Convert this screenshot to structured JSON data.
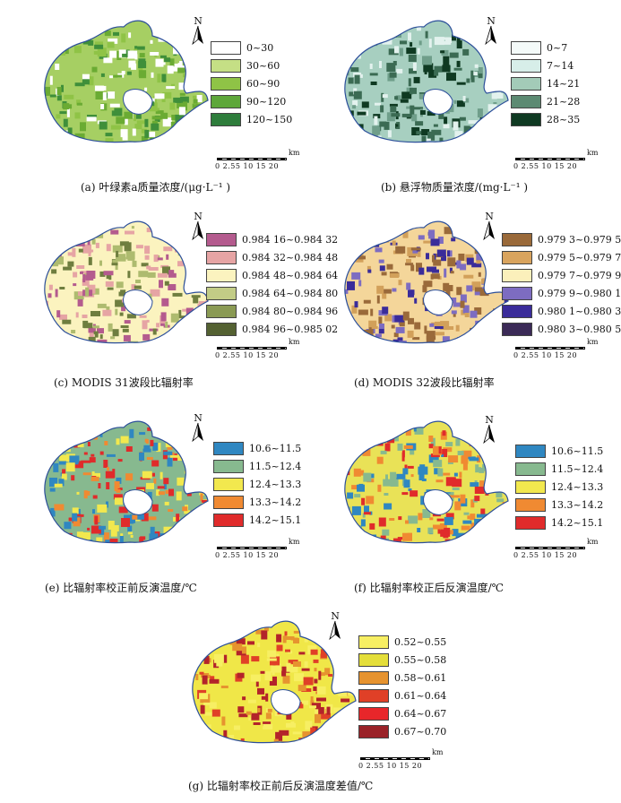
{
  "north_label": "N",
  "scale_unit": "km",
  "scale_ticks": "0 2.55  10  15  20",
  "panels": [
    {
      "caption": "(a) 叶绿素a质量浓度/(μg·L⁻¹ )",
      "fill": "#a6cf63",
      "patches": [
        "#8fc346",
        "#6aab33",
        "#3f8f3a",
        "#ffffff"
      ],
      "legend": [
        {
          "label": "0~30",
          "color": "#ffffff"
        },
        {
          "label": "30~60",
          "color": "#c5df85"
        },
        {
          "label": "60~90",
          "color": "#8fc346"
        },
        {
          "label": "90~120",
          "color": "#5ea73a"
        },
        {
          "label": "120~150",
          "color": "#2e7d3c"
        }
      ]
    },
    {
      "caption": "(b) 悬浮物质量浓度/(mg·L⁻¹ )",
      "fill": "#a7cfc0",
      "patches": [
        "#e3f2ee",
        "#6f9e8a",
        "#3b6b53",
        "#0f3a22"
      ],
      "legend": [
        {
          "label": "0~7",
          "color": "#f4faf9"
        },
        {
          "label": "7~14",
          "color": "#d7eee9"
        },
        {
          "label": "14~21",
          "color": "#a3cbb8"
        },
        {
          "label": "21~28",
          "color": "#5c8a72"
        },
        {
          "label": "28~35",
          "color": "#0f3a22"
        }
      ]
    },
    {
      "caption": "(c) MODIS 31波段比辐射率",
      "fill": "#fbf3bf",
      "patches": [
        "#e6a4a4",
        "#b45b8e",
        "#6f7e3f",
        "#aebb6f"
      ],
      "legend": [
        {
          "label": "0.984 16~0.984 32",
          "color": "#b45b8e"
        },
        {
          "label": "0.984 32~0.984 48",
          "color": "#e6a4a4"
        },
        {
          "label": "0.984 48~0.984 64",
          "color": "#fbf3bf"
        },
        {
          "label": "0.984 64~0.984 80",
          "color": "#c2cc86"
        },
        {
          "label": "0.984 80~0.984 96",
          "color": "#8a9a54"
        },
        {
          "label": "0.984 96~0.985 02",
          "color": "#546132"
        }
      ]
    },
    {
      "caption": "(d) MODIS 32波段比辐射率",
      "fill": "#f4d69a",
      "patches": [
        "#d2a05a",
        "#7d6cc1",
        "#3a2c9a",
        "#9a6a3a"
      ],
      "legend": [
        {
          "label": "0.979 3~0.979 5",
          "color": "#9a6a3a"
        },
        {
          "label": "0.979 5~0.979 7",
          "color": "#d9a45e"
        },
        {
          "label": "0.979 7~0.979 9",
          "color": "#fbf0bb"
        },
        {
          "label": "0.979 9~0.980 1",
          "color": "#7d6cc1"
        },
        {
          "label": "0.980 1~0.980 3",
          "color": "#3a2c9a"
        },
        {
          "label": "0.980 3~0.980 5",
          "color": "#3b2a57"
        }
      ]
    },
    {
      "caption": "(e) 比辐射率校正前反演温度/℃",
      "fill": "#87b98f",
      "patches": [
        "#2f87c1",
        "#f2e84e",
        "#f08a32",
        "#e02b2b"
      ],
      "legend": [
        {
          "label": "10.6~11.5",
          "color": "#2f87c1"
        },
        {
          "label": "11.5~12.4",
          "color": "#87b98f"
        },
        {
          "label": "12.4~13.3",
          "color": "#f2e84e"
        },
        {
          "label": "13.3~14.2",
          "color": "#f08a32"
        },
        {
          "label": "14.2~15.1",
          "color": "#e02b2b"
        }
      ]
    },
    {
      "caption": "(f) 比辐射率校正后反演温度/℃",
      "fill": "#e9e257",
      "patches": [
        "#87b98f",
        "#f08a32",
        "#e02b2b",
        "#2f87c1"
      ],
      "legend": [
        {
          "label": "10.6~11.5",
          "color": "#2f87c1"
        },
        {
          "label": "11.5~12.4",
          "color": "#87b98f"
        },
        {
          "label": "12.4~13.3",
          "color": "#f2e84e"
        },
        {
          "label": "13.3~14.2",
          "color": "#f08a32"
        },
        {
          "label": "14.2~15.1",
          "color": "#e02b2b"
        }
      ]
    },
    {
      "caption": "(g) 比辐射率校正前后反演温度差值/℃",
      "fill": "#f0e748",
      "patches": [
        "#e6932f",
        "#e04027",
        "#b3232a",
        "#f7ef63"
      ],
      "legend": [
        {
          "label": "0.52~0.55",
          "color": "#f7ef63"
        },
        {
          "label": "0.55~0.58",
          "color": "#e4de3a"
        },
        {
          "label": "0.58~0.61",
          "color": "#e6932f"
        },
        {
          "label": "0.61~0.64",
          "color": "#e04027"
        },
        {
          "label": "0.64~0.67",
          "color": "#e8262a"
        },
        {
          "label": "0.67~0.70",
          "color": "#9a2228"
        }
      ]
    }
  ]
}
